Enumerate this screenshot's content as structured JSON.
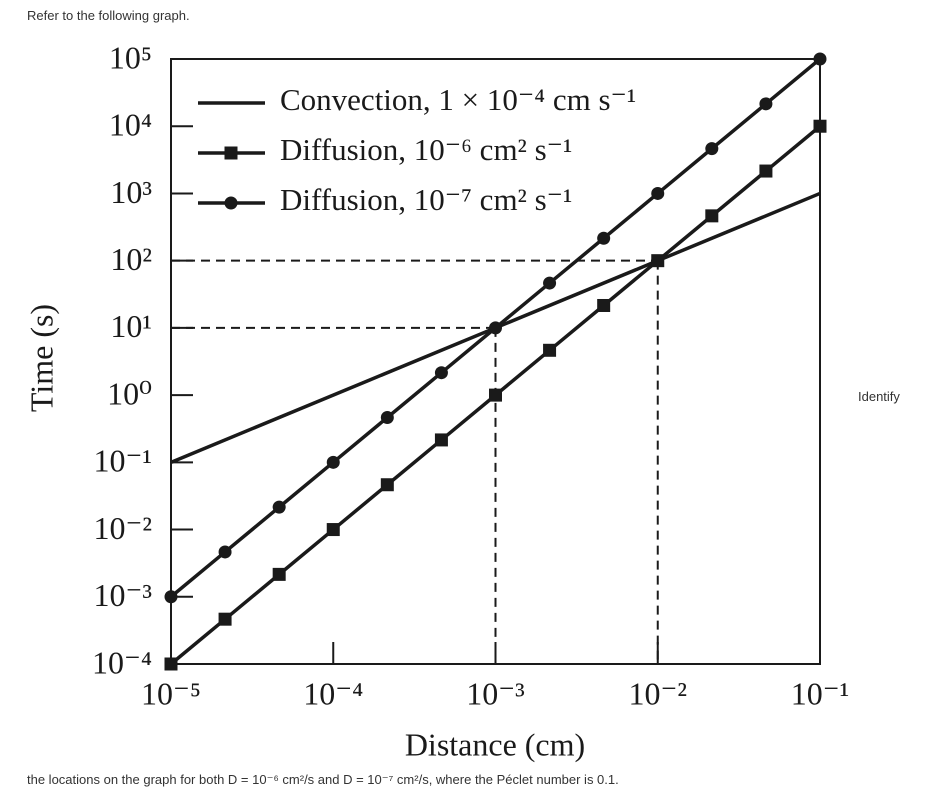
{
  "header": {
    "text": "Refer to the following graph."
  },
  "side_text": "Identify",
  "footer": {
    "text": "the locations on the graph for both D = 10⁻⁶ cm²/s and D = 10⁻⁷ cm²/s, where the Péclet number is 0.1."
  },
  "chart_data": {
    "type": "line",
    "xlabel": "Distance (cm)",
    "ylabel": "Time (s)",
    "xscale": "log",
    "yscale": "log",
    "xlim": [
      1e-05,
      0.1
    ],
    "ylim": [
      0.0001,
      100000
    ],
    "xticks": [
      {
        "value": 1e-05,
        "label": "10⁻⁵"
      },
      {
        "value": 0.0001,
        "label": "10⁻⁴"
      },
      {
        "value": 0.001,
        "label": "10⁻³"
      },
      {
        "value": 0.01,
        "label": "10⁻²"
      },
      {
        "value": 0.1,
        "label": "10⁻¹"
      }
    ],
    "yticks": [
      {
        "value": 0.0001,
        "label": "10⁻⁴"
      },
      {
        "value": 0.001,
        "label": "10⁻³"
      },
      {
        "value": 0.01,
        "label": "10⁻²"
      },
      {
        "value": 0.1,
        "label": "10⁻¹"
      },
      {
        "value": 1,
        "label": "10⁰"
      },
      {
        "value": 10,
        "label": "10¹"
      },
      {
        "value": 100,
        "label": "10²"
      },
      {
        "value": 1000,
        "label": "10³"
      },
      {
        "value": 10000,
        "label": "10⁴"
      },
      {
        "value": 100000,
        "label": "10⁵"
      }
    ],
    "legend": "upper left",
    "series": [
      {
        "name": "Convection, 1 × 10⁻⁴ cm s⁻¹",
        "color": "#1a1a1a",
        "marker": "none",
        "x": [
          1e-05,
          0.1
        ],
        "values": [
          0.1,
          1000
        ]
      },
      {
        "name": "Diffusion, 10⁻⁶ cm² s⁻¹",
        "color": "#1a1a1a",
        "marker": "square",
        "x": [
          1e-05,
          2.154e-05,
          4.642e-05,
          0.0001,
          0.0002154,
          0.0004642,
          0.001,
          0.002154,
          0.004642,
          0.01,
          0.02154,
          0.04642,
          0.1
        ],
        "values": [
          0.0001,
          0.0004642,
          0.002154,
          0.01,
          0.04642,
          0.2154,
          1,
          4.642,
          21.54,
          100,
          464.2,
          2154,
          10000
        ]
      },
      {
        "name": "Diffusion, 10⁻⁷ cm² s⁻¹",
        "color": "#1a1a1a",
        "marker": "circle",
        "x": [
          1e-05,
          2.154e-05,
          4.642e-05,
          0.0001,
          0.0002154,
          0.0004642,
          0.001,
          0.002154,
          0.004642,
          0.01,
          0.02154,
          0.04642,
          0.1
        ],
        "values": [
          0.001,
          0.004642,
          0.02154,
          0.1,
          0.4642,
          2.154,
          10,
          46.42,
          215.4,
          1000,
          4642,
          21540,
          100000
        ]
      }
    ],
    "reference_lines": [
      {
        "x": 0.001,
        "y": 10
      },
      {
        "x": 0.01,
        "y": 100
      }
    ]
  }
}
